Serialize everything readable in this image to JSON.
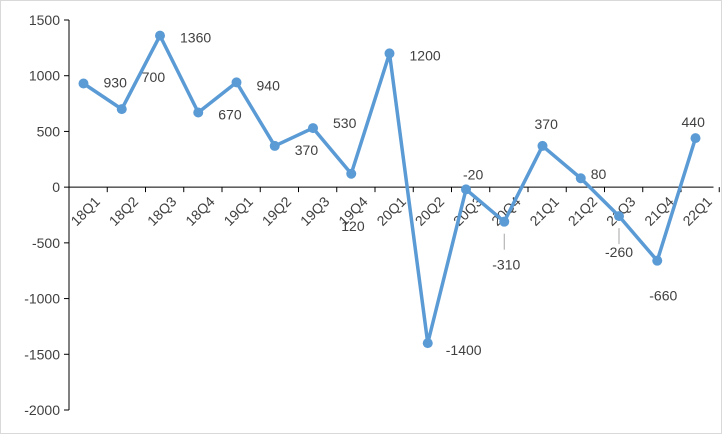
{
  "chart_data": {
    "type": "line",
    "title": "",
    "xlabel": "",
    "ylabel": "",
    "categories": [
      "18Q1",
      "18Q2",
      "18Q3",
      "18Q4",
      "19Q1",
      "19Q2",
      "19Q3",
      "19Q4",
      "20Q1",
      "20Q2",
      "20Q3",
      "20Q4",
      "21Q1",
      "21Q2",
      "21Q3",
      "21Q4",
      "22Q1"
    ],
    "series": [
      {
        "values": [
          930,
          700,
          1360,
          670,
          940,
          370,
          530,
          120,
          1200,
          -1400,
          -20,
          -310,
          370,
          80,
          -260,
          -660,
          440
        ],
        "color": "#5b9bd5"
      }
    ],
    "data_labels": [
      "930",
      "700",
      "1360",
      "670",
      "940",
      "370",
      "530",
      "120",
      "1200",
      "-1400",
      "-20",
      "-310",
      "370",
      "80",
      "-260",
      "-660",
      "440"
    ],
    "ylim": [
      -2000,
      1500
    ],
    "yticks": [
      -2000,
      -1500,
      -1000,
      -500,
      0,
      500,
      1000,
      1500
    ],
    "grid": false,
    "legend": "none",
    "axis_color": "#000000",
    "leader_color": "#a6a6a6"
  }
}
